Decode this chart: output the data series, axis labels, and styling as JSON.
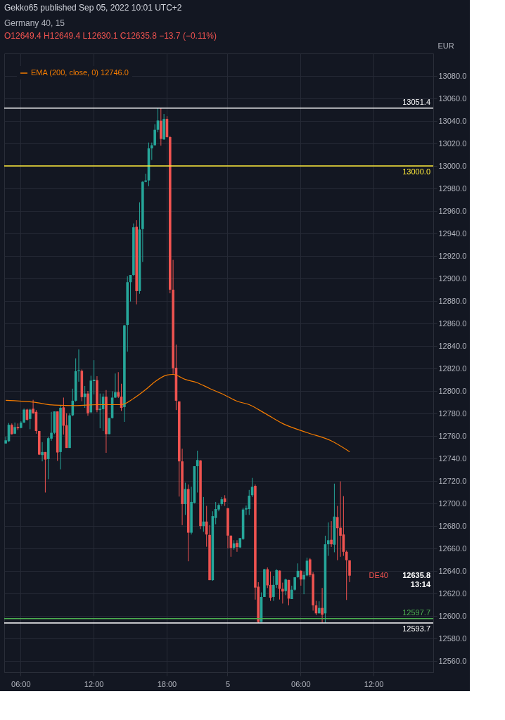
{
  "chart_data": {
    "type": "candlestick",
    "title": "Germany 40, 15",
    "subtitle": "O12649.4 H12649.4 L12630.1 C12635.8 −13.7 (−0.11%)",
    "ylabel": "EUR",
    "annotations": [
      "Gekko65 published Sep 05, 2022 10:01 UTC+2",
      "DE40",
      "12635.8\n13:14"
    ],
    "categories": [
      null,
      null,
      null,
      null,
      null,
      "06:00",
      null,
      null,
      null,
      null,
      null,
      null,
      null,
      null,
      null,
      null,
      null,
      null,
      null,
      null,
      null,
      null,
      null,
      null,
      null,
      null,
      null,
      null,
      null,
      "12:00",
      null,
      null,
      null,
      null,
      null,
      null,
      null,
      null,
      null,
      null,
      null,
      null,
      null,
      null,
      null,
      null,
      null,
      null,
      null,
      null,
      null,
      null,
      null,
      "18:00",
      null,
      null,
      null,
      null,
      null,
      null,
      null,
      null,
      null,
      null,
      null,
      null,
      null,
      null,
      null,
      null,
      null,
      null,
      null,
      "5",
      null,
      null,
      null,
      null,
      null,
      null,
      null,
      null,
      null,
      null,
      null,
      null,
      null,
      null,
      null,
      null,
      null,
      null,
      null,
      null,
      null,
      null,
      null,
      "06:00",
      null,
      null,
      null,
      null,
      null,
      null,
      null,
      null,
      null,
      null,
      null,
      null,
      null,
      null,
      null,
      null,
      null,
      null,
      null,
      null,
      null,
      null,
      null,
      "12:00",
      null,
      null,
      null,
      null,
      null,
      null,
      null,
      null,
      null,
      null,
      null,
      null,
      null,
      null,
      null,
      null,
      null,
      null,
      null
    ],
    "ohlc": [
      [
        12753.3,
        12759.2,
        12753.3,
        12756.1
      ],
      [
        12755.3,
        12771.5,
        12754.7,
        12769.9
      ],
      [
        12769.9,
        12771.1,
        12761.2,
        12761.6
      ],
      [
        12762.0,
        12771.9,
        12761.6,
        12767.9
      ],
      [
        12767.9,
        12771.1,
        12765.2,
        12766.8
      ],
      [
        12767.1,
        12773.1,
        12766.8,
        12771.9
      ],
      [
        12771.9,
        12784.4,
        12771.5,
        12783.4
      ],
      [
        12783.4,
        12784.2,
        12773.5,
        12774.3
      ],
      [
        12775.1,
        12784.2,
        12766.0,
        12783.4
      ],
      [
        12784.2,
        12792.1,
        12779.8,
        12780.2
      ],
      [
        12781.4,
        12783.0,
        12762.0,
        12764.4
      ],
      [
        12764.4,
        12764.4,
        12743.0,
        12743.4
      ],
      [
        12743.0,
        12754.5,
        12737.4,
        12745.7
      ],
      [
        12745.7,
        12745.7,
        12709.7,
        12739.0
      ],
      [
        12739.4,
        12759.2,
        12721.6,
        12758.0
      ],
      [
        12757.6,
        12781.4,
        12755.7,
        12762.8
      ],
      [
        12762.8,
        12781.8,
        12761.6,
        12781.8
      ],
      [
        12781.8,
        12781.8,
        12737.8,
        12745.3
      ],
      [
        12745.7,
        12787.0,
        12730.3,
        12785.0
      ],
      [
        12785.4,
        12794.1,
        12761.2,
        12769.1
      ],
      [
        12769.5,
        12780.2,
        12749.3,
        12749.3
      ],
      [
        12749.3,
        12780.2,
        12749.3,
        12778.3
      ],
      [
        12778.3,
        12802.0,
        12777.5,
        12791.3
      ],
      [
        12791.3,
        12829.0,
        12790.5,
        12817.5
      ],
      [
        12817.5,
        12836.9,
        12808.2,
        12818.3
      ],
      [
        12817.9,
        12819.1,
        12790.9,
        12794.5
      ],
      [
        12794.5,
        12804.4,
        12785.0,
        12797.7
      ],
      [
        12797.7,
        12800.0,
        12777.9,
        12780.2
      ],
      [
        12781.0,
        12813.5,
        12780.2,
        12809.2
      ],
      [
        12808.8,
        12827.4,
        12796.9,
        12810.0
      ],
      [
        12809.6,
        12813.1,
        12781.0,
        12783.0
      ],
      [
        12783.0,
        12797.7,
        12766.8,
        12784.2
      ],
      [
        12783.8,
        12797.7,
        12764.4,
        12794.9
      ],
      [
        12794.9,
        12800.8,
        12745.0,
        12761.6
      ],
      [
        12761.6,
        12775.9,
        12761.6,
        12775.9
      ],
      [
        12775.9,
        12799.7,
        12775.5,
        12794.1
      ],
      [
        12794.1,
        12815.5,
        12793.7,
        12798.9
      ],
      [
        12798.9,
        12816.7,
        12793.7,
        12794.9
      ],
      [
        12794.9,
        12806.4,
        12782.2,
        12785.0
      ],
      [
        12785.7,
        12858.7,
        12772.5,
        12858.3
      ],
      [
        12858.7,
        12901.9,
        12834.9,
        12896.7
      ],
      [
        12896.7,
        12903.1,
        12879.5,
        12903.1
      ],
      [
        12903.1,
        12948.9,
        12902.3,
        12945.5
      ],
      [
        12945.9,
        12951.8,
        12876.9,
        12888.8
      ],
      [
        12888.8,
        12967.7,
        12886.4,
        12943.5
      ],
      [
        12943.9,
        12986.5,
        12914.6,
        12985.9
      ],
      [
        12985.9,
        12993.1,
        12985.5,
        12987.1
      ],
      [
        12987.1,
        13020.8,
        12982.0,
        13015.6
      ],
      [
        13015.6,
        13020.8,
        13005.3,
        13018.4
      ],
      [
        13018.4,
        13037.1,
        13018.0,
        13032.1
      ],
      [
        13032.1,
        13051.3,
        13029.9,
        13040.4
      ],
      [
        13040.2,
        13051.4,
        13018.0,
        13024.0
      ],
      [
        13023.6,
        13046.2,
        13023.2,
        13041.8
      ],
      [
        13041.8,
        13044.2,
        13025.2,
        13025.6
      ],
      [
        13025.6,
        13026.7,
        12886.8,
        12890.0
      ],
      [
        12890.0,
        12916.5,
        12815.1,
        12820.2
      ],
      [
        12820.6,
        12841.2,
        12783.0,
        12791.3
      ],
      [
        12790.7,
        12790.7,
        12706.1,
        12737.4
      ],
      [
        12737.4,
        12748.7,
        12680.7,
        12699.4
      ],
      [
        12699.4,
        12718.4,
        12689.8,
        12712.8
      ],
      [
        12712.8,
        12716.8,
        12648.6,
        12674.0
      ],
      [
        12674.0,
        12714.8,
        12672.4,
        12701.3
      ],
      [
        12700.5,
        12733.1,
        12700.1,
        12733.1
      ],
      [
        12733.1,
        12746.9,
        12709.7,
        12738.6
      ],
      [
        12738.2,
        12738.6,
        12677.2,
        12679.9
      ],
      [
        12679.9,
        12705.7,
        12674.8,
        12683.9
      ],
      [
        12683.9,
        12697.8,
        12661.5,
        12672.4
      ],
      [
        12672.0,
        12680.7,
        12631.8,
        12631.8
      ],
      [
        12631.8,
        12693.0,
        12631.2,
        12688.7
      ],
      [
        12687.1,
        12701.3,
        12681.5,
        12695.0
      ],
      [
        12694.6,
        12700.1,
        12693.0,
        12698.6
      ],
      [
        12699.4,
        12705.7,
        12697.8,
        12703.7
      ],
      [
        12704.5,
        12707.3,
        12697.8,
        12701.3
      ],
      [
        12695.8,
        12695.8,
        12660.1,
        12671.4
      ],
      [
        12671.4,
        12671.4,
        12652.6,
        12660.5
      ],
      [
        12660.5,
        12667.3,
        12658.9,
        12664.5
      ],
      [
        12664.9,
        12667.3,
        12657.0,
        12661.3
      ],
      [
        12660.9,
        12669.2,
        12660.5,
        12669.2
      ],
      [
        12668.4,
        12696.2,
        12667.6,
        12694.6
      ],
      [
        12694.6,
        12698.2,
        12689.8,
        12695.8
      ],
      [
        12695.0,
        12712.0,
        12689.8,
        12706.9
      ],
      [
        12707.3,
        12722.7,
        12705.7,
        12714.8
      ],
      [
        12715.6,
        12716.8,
        12614.5,
        12625.2
      ],
      [
        12626.0,
        12630.0,
        12593.7,
        12594.7
      ],
      [
        12594.7,
        12620.9,
        12594.7,
        12616.9
      ],
      [
        12616.9,
        12641.9,
        12616.9,
        12641.5
      ],
      [
        12641.5,
        12643.1,
        12624.8,
        12627.2
      ],
      [
        12627.6,
        12639.5,
        12613.4,
        12616.2
      ],
      [
        12616.9,
        12635.6,
        12613.4,
        12627.6
      ],
      [
        12627.6,
        12641.5,
        12624.9,
        12640.7
      ],
      [
        12640.3,
        12640.3,
        12614.6,
        12624.1
      ],
      [
        12624.1,
        12629.6,
        12611.0,
        12621.7
      ],
      [
        12622.1,
        12633.2,
        12618.5,
        12632.4
      ],
      [
        12632.0,
        12632.0,
        12609.4,
        12615.4
      ],
      [
        12615.0,
        12626.9,
        12615.0,
        12623.3
      ],
      [
        12623.3,
        12634.4,
        12622.5,
        12634.4
      ],
      [
        12634.4,
        12646.7,
        12634.0,
        12640.1
      ],
      [
        12640.1,
        12640.7,
        12626.9,
        12632.4
      ],
      [
        12632.4,
        12639.5,
        12619.3,
        12636.4
      ],
      [
        12636.0,
        12651.8,
        12635.2,
        12649.1
      ],
      [
        12650.3,
        12651.4,
        12634.8,
        12636.4
      ],
      [
        12637.2,
        12638.8,
        12604.7,
        12609.4
      ],
      [
        12609.4,
        12613.4,
        12600.7,
        12602.3
      ],
      [
        12602.3,
        12613.0,
        12602.3,
        12607.1
      ],
      [
        12607.1,
        12624.9,
        12594.0,
        12601.1
      ],
      [
        12602.3,
        12671.3,
        12594.0,
        12663.7
      ],
      [
        12663.7,
        12683.1,
        12653.4,
        12667.3
      ],
      [
        12667.7,
        12684.3,
        12661.3,
        12663.7
      ],
      [
        12663.3,
        12717.6,
        12656.6,
        12688.3
      ],
      [
        12687.9,
        12697.8,
        12649.5,
        12678.0
      ],
      [
        12678.4,
        12719.6,
        12652.6,
        12671.3
      ],
      [
        12672.4,
        12706.5,
        12653.4,
        12657.0
      ],
      [
        12657.0,
        12658.2,
        12614.2,
        12649.5
      ],
      [
        12649.4,
        12649.4,
        12630.1,
        12635.8
      ],
      null,
      null,
      null,
      null,
      null,
      null,
      null,
      null,
      null,
      null,
      null,
      null,
      null,
      null,
      null,
      null,
      null,
      null,
      null,
      null,
      null,
      null,
      null,
      null,
      null,
      null,
      null
    ],
    "colors": [
      "#26a69a",
      "#26a69a",
      "#ef5350",
      "#26a69a",
      "#ef5350",
      "#26a69a",
      "#26a69a",
      "#ef5350",
      "#26a69a",
      "#ef5350",
      "#ef5350",
      "#ef5350",
      "#26a69a",
      "#ef5350",
      "#26a69a",
      "#26a69a",
      "#26a69a",
      "#ef5350",
      "#26a69a",
      "#ef5350",
      "#ef5350",
      "#26a69a",
      "#26a69a",
      "#26a69a",
      "#26a69a",
      "#ef5350",
      "#26a69a",
      "#ef5350",
      "#26a69a",
      "#26a69a",
      "#ef5350",
      "#26a69a",
      "#26a69a",
      "#ef5350",
      "#26a69a",
      "#26a69a",
      "#26a69a",
      "#ef5350",
      "#ef5350",
      "#26a69a",
      "#26a69a",
      "#26a69a",
      "#26a69a",
      "#ef5350",
      "#26a69a",
      "#26a69a",
      "#26a69a",
      "#26a69a",
      "#26a69a",
      "#26a69a",
      "#26a69a",
      "#ef5350",
      "#26a69a",
      "#ef5350",
      "#ef5350",
      "#ef5350",
      "#ef5350",
      "#ef5350",
      "#ef5350",
      "#26a69a",
      "#ef5350",
      "#26a69a",
      "#26a69a",
      "#26a69a",
      "#ef5350",
      "#26a69a",
      "#ef5350",
      "#ef5350",
      "#26a69a",
      "#26a69a",
      "#26a69a",
      "#26a69a",
      "#ef5350",
      "#ef5350",
      "#ef5350",
      "#26a69a",
      "#ef5350",
      "#26a69a",
      "#26a69a",
      "#26a69a",
      "#26a69a",
      "#26a69a",
      "#ef5350",
      "#ef5350",
      "#26a69a",
      "#26a69a",
      "#ef5350",
      "#ef5350",
      "#26a69a",
      "#26a69a",
      "#ef5350",
      "#ef5350",
      "#26a69a",
      "#ef5350",
      "#26a69a",
      "#26a69a",
      "#26a69a",
      "#ef5350",
      "#26a69a",
      "#26a69a",
      "#ef5350",
      "#ef5350",
      "#ef5350",
      "#26a69a",
      "#ef5350",
      "#26a69a",
      "#26a69a",
      "#ef5350",
      "#26a69a",
      "#ef5350",
      "#ef5350",
      "#ef5350",
      "#ef5350",
      "#ef5350",
      null,
      null,
      null,
      null,
      null,
      null,
      null,
      null,
      null,
      null,
      null,
      null,
      null,
      null,
      null,
      null,
      null,
      null,
      null,
      null,
      null,
      null,
      null,
      null,
      null,
      null,
      null
    ],
    "series": [
      {
        "type": "line",
        "name": "EMA (200, close, 0) 12746.0",
        "color": "#f57c00",
        "values": [
          12791.7,
          null,
          null,
          null,
          null,
          null,
          null,
          null,
          null,
          12790.1,
          null,
          null,
          null,
          null,
          null,
          null,
          12787.4,
          null,
          null,
          null,
          null,
          null,
          null,
          12787.0,
          null,
          null,
          null,
          null,
          null,
          null,
          12787.8,
          null,
          null,
          null,
          null,
          null,
          null,
          null,
          12787.8,
          null,
          null,
          null,
          12793.3,
          null,
          null,
          null,
          12801.2,
          null,
          null,
          12808.1,
          null,
          null,
          null,
          12814.1,
          null,
          12814.7,
          null,
          null,
          null,
          12810.2,
          null,
          null,
          null,
          12807.2,
          null,
          null,
          null,
          12802.2,
          null,
          null,
          null,
          null,
          12796.3,
          null,
          null,
          null,
          12790.9,
          null,
          null,
          null,
          12787.8,
          null,
          null,
          null,
          null,
          12780.4,
          null,
          null,
          null,
          null,
          null,
          12771.0,
          null,
          null,
          null,
          null,
          null,
          null,
          null,
          12763.0,
          null,
          null,
          null,
          null,
          null,
          null,
          null,
          12755.6,
          null,
          null,
          null,
          null,
          null,
          12746.0,
          null,
          null,
          null,
          null,
          null,
          null,
          null,
          null,
          null,
          null,
          null,
          null,
          null,
          null,
          null,
          null,
          null,
          null,
          null,
          null,
          null,
          null,
          null,
          null,
          null,
          null,
          null
        ]
      }
    ],
    "ref_lines": [
      {
        "axis": "y",
        "value": 13051.4,
        "label": "13051.4",
        "color": "#ffffff"
      },
      {
        "axis": "y",
        "value": 13000.0,
        "label": "13000.0",
        "color": "#ffeb3b"
      },
      {
        "axis": "y",
        "value": 12597.7,
        "label": "12597.7",
        "color": "#4caf50"
      },
      {
        "axis": "y",
        "value": 12593.7,
        "label": "12593.7",
        "color": "#ffffff"
      }
    ],
    "ylim": [
      12550,
      13100
    ],
    "yticks": [
      {
        "value": 12560,
        "label": "12560.0"
      },
      {
        "value": 12580,
        "label": "12580.0"
      },
      {
        "value": 12600,
        "label": "12600.0"
      },
      {
        "value": 12620,
        "label": "12620.0"
      },
      {
        "value": 12640,
        "label": "12640.0"
      },
      {
        "value": 12660,
        "label": "12660.0"
      },
      {
        "value": 12680,
        "label": "12680.0"
      },
      {
        "value": 12700,
        "label": "12700.0"
      },
      {
        "value": 12720,
        "label": "12720.0"
      },
      {
        "value": 12740,
        "label": "12740.0"
      },
      {
        "value": 12760,
        "label": "12760.0"
      },
      {
        "value": 12780,
        "label": "12780.0"
      },
      {
        "value": 12800,
        "label": "12800.0"
      },
      {
        "value": 12820,
        "label": "12820.0"
      },
      {
        "value": 12840,
        "label": "12840.0"
      },
      {
        "value": 12860,
        "label": "12860.0"
      },
      {
        "value": 12880,
        "label": "12880.0"
      },
      {
        "value": 12900,
        "label": "12900.0"
      },
      {
        "value": 12920,
        "label": "12920.0"
      },
      {
        "value": 12940,
        "label": "12940.0"
      },
      {
        "value": 12960,
        "label": "12960.0"
      },
      {
        "value": 12980,
        "label": "12980.0"
      },
      {
        "value": 13000,
        "label": "13000.0"
      },
      {
        "value": 13020,
        "label": "13020.0"
      },
      {
        "value": 13040,
        "label": "13040.0"
      },
      {
        "value": 13060,
        "label": "13060.0"
      },
      {
        "value": 13080,
        "label": "13080.0"
      }
    ],
    "grid": true,
    "legend": "top left"
  }
}
